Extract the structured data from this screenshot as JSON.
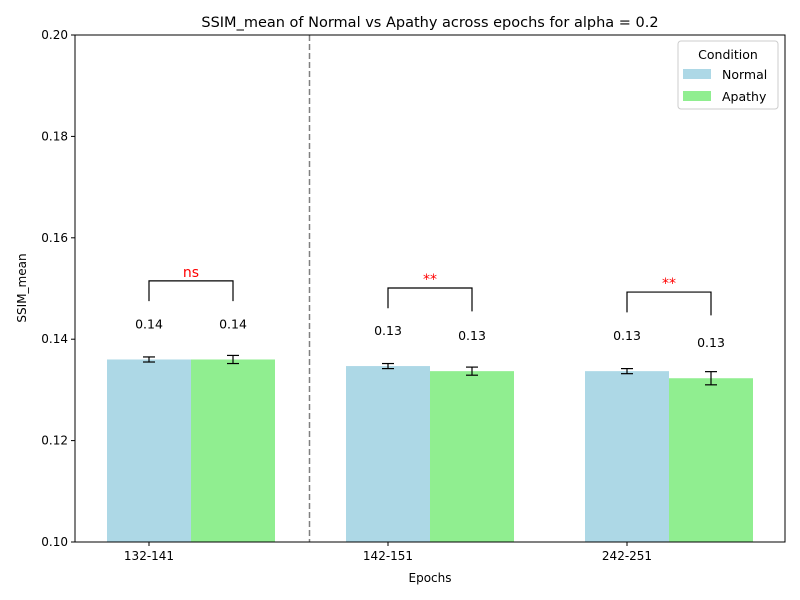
{
  "chart_data": {
    "type": "bar",
    "title": "SSIM_mean of Normal vs Apathy across epochs for alpha = 0.2",
    "xlabel": "Epochs",
    "ylabel": "SSIM_mean",
    "ylim": [
      0.1,
      0.2
    ],
    "yticks": [
      "0.10",
      "0.12",
      "0.14",
      "0.16",
      "0.18",
      "0.20"
    ],
    "categories": [
      "132-141",
      "142-151",
      "242-251"
    ],
    "series": [
      {
        "name": "Normal",
        "color": "#add8e6",
        "values": [
          0.136,
          0.1347,
          0.1337
        ],
        "errors": [
          0.0005,
          0.0005,
          0.0005
        ],
        "value_labels": [
          "0.14",
          "0.13",
          "0.13"
        ]
      },
      {
        "name": "Apathy",
        "color": "#90ee90",
        "values": [
          0.136,
          0.1337,
          0.1323
        ],
        "errors": [
          0.0008,
          0.0008,
          0.0013
        ],
        "value_labels": [
          "0.14",
          "0.13",
          "0.13"
        ]
      }
    ],
    "significance": [
      {
        "label": "ns",
        "level": 0.1515,
        "left_drop": 0.1475,
        "right_drop": 0.1475
      },
      {
        "label": "**",
        "level": 0.1501,
        "left_drop": 0.1461,
        "right_drop": 0.1455
      },
      {
        "label": "**",
        "level": 0.1493,
        "left_drop": 0.1453,
        "right_drop": 0.1447
      }
    ],
    "divider_after_category": 0,
    "legend": {
      "title": "Condition",
      "placement": "top-right"
    },
    "grid": false,
    "colors": {
      "significance": "#ff0000",
      "divider": "#808080"
    }
  }
}
